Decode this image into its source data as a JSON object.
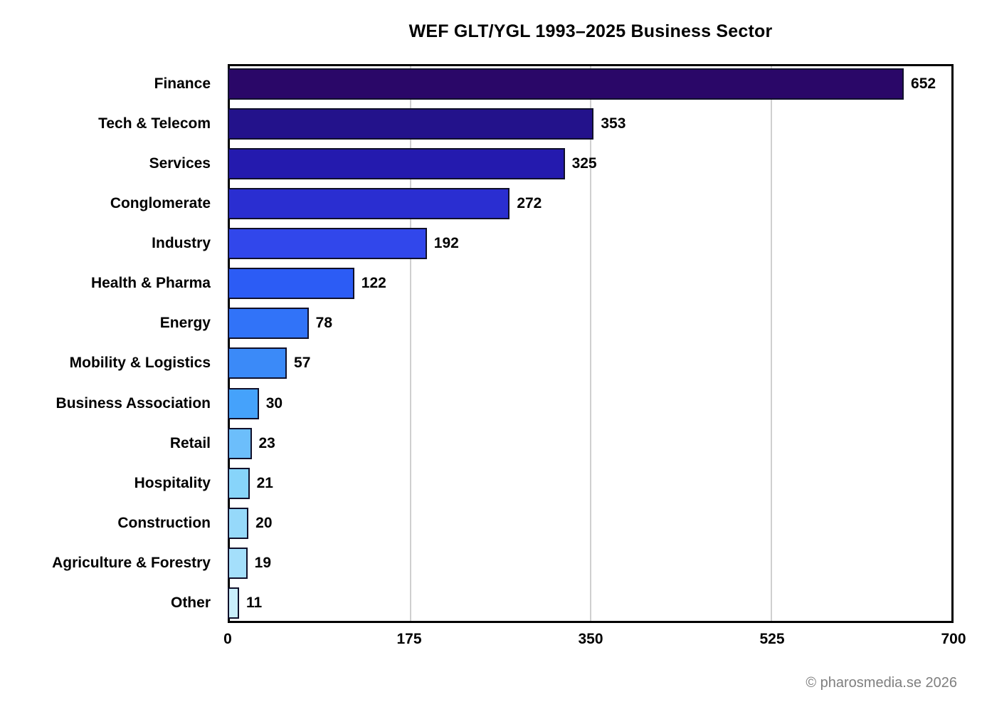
{
  "title": "WEF GLT/YGL 1993–2025 Business Sector",
  "footer": "© pharosmedia.se 2026",
  "chart_data": {
    "type": "bar",
    "orientation": "horizontal",
    "title": "WEF GLT/YGL 1993–2025 Business Sector",
    "categories": [
      "Finance",
      "Tech & Telecom",
      "Services",
      "Conglomerate",
      "Industry",
      "Health & Pharma",
      "Energy",
      "Mobility & Logistics",
      "Business Association",
      "Retail",
      "Hospitality",
      "Construction",
      "Agriculture & Forestry",
      "Other"
    ],
    "values": [
      652,
      353,
      325,
      272,
      192,
      122,
      78,
      57,
      30,
      23,
      21,
      20,
      19,
      11
    ],
    "bar_colors": [
      "#2a0768",
      "#23128b",
      "#241aae",
      "#2a2ed1",
      "#3147eb",
      "#2c5cf5",
      "#3173f8",
      "#3b8af8",
      "#45a2fb",
      "#6cbefb",
      "#87d4fa",
      "#96d9fa",
      "#a4dffb",
      "#c9eefb"
    ],
    "value_labels_shown": true,
    "xlabel": "",
    "ylabel": "",
    "xlim": [
      0,
      700
    ],
    "x_ticks": [
      0,
      175,
      350,
      525,
      700
    ],
    "gridlines_x": [
      175,
      350,
      525
    ],
    "legend": "none"
  },
  "colors": {
    "background": "#ffffff",
    "bar_border": "#10102a",
    "plot_border": "#000000",
    "gridline": "#cfcfcf",
    "text": "#000000",
    "footer_text": "#7f7f7f"
  }
}
